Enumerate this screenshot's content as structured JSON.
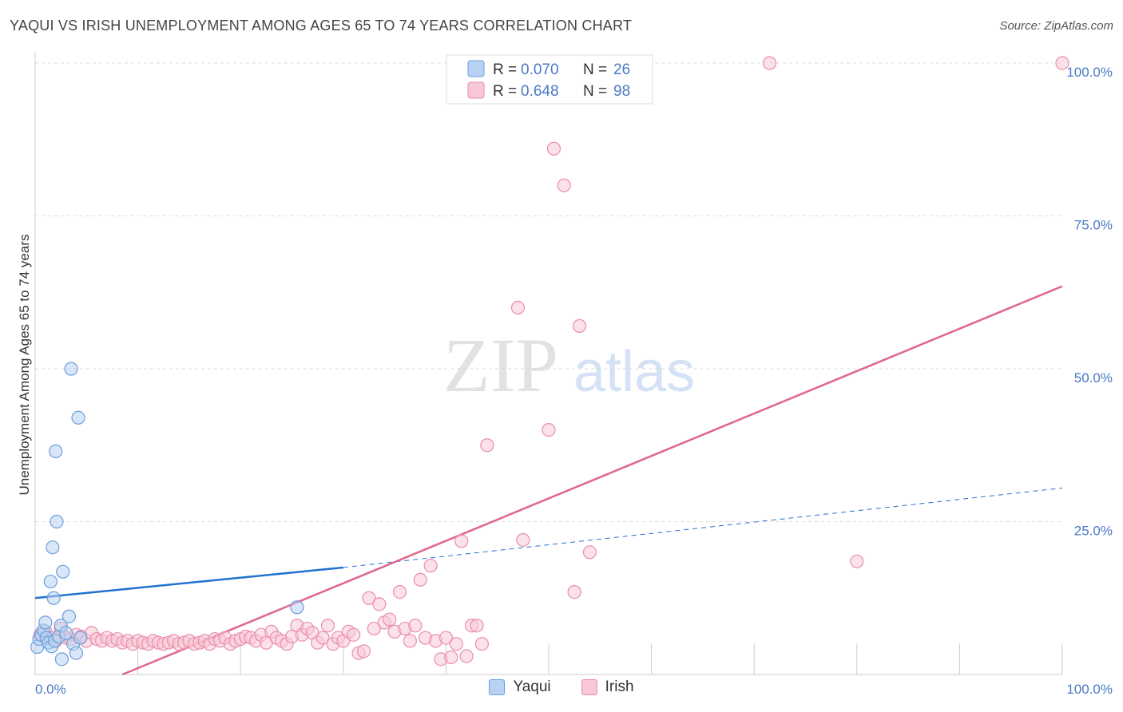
{
  "title": "YAQUI VS IRISH UNEMPLOYMENT AMONG AGES 65 TO 74 YEARS CORRELATION CHART",
  "source": "Source: ZipAtlas.com",
  "watermark": {
    "zip": "ZIP",
    "atlas": "atlas"
  },
  "colors": {
    "yaqui_fill": "#b8d2f3",
    "yaqui_stroke": "#6d9edb",
    "yaqui_line": "#2271d1",
    "irish_fill": "#f8c8d6",
    "irish_stroke": "#ea8eab",
    "irish_line": "#e0668e",
    "tick_label": "#4a79c4",
    "grid": "#dddddd"
  },
  "chart_data": {
    "type": "scatter",
    "title": "YAQUI VS IRISH UNEMPLOYMENT AMONG AGES 65 TO 74 YEARS CORRELATION CHART",
    "xlabel": "",
    "ylabel": "Unemployment Among Ages 65 to 74 years",
    "xlim": [
      0,
      100
    ],
    "ylim": [
      0,
      100
    ],
    "x_tick_labels": [
      "0.0%",
      "100.0%"
    ],
    "y_ticks": [
      25,
      50,
      75,
      100
    ],
    "y_tick_labels": [
      "25.0%",
      "50.0%",
      "75.0%",
      "100.0%"
    ],
    "grid": true,
    "legend_stats": [
      {
        "series": "Yaqui",
        "r_label": "R =",
        "r": "0.070",
        "n_label": "N =",
        "n": "26"
      },
      {
        "series": "Irish",
        "r_label": "R =",
        "r": "0.648",
        "n_label": "N =",
        "n": "98"
      }
    ],
    "series": [
      {
        "name": "Yaqui",
        "trend": {
          "x0": 0,
          "y0": 12.5,
          "x1": 30,
          "y1": 17.5,
          "dashed_to": {
            "x": 100,
            "y": 30.5
          }
        },
        "points": [
          [
            0.2,
            4.5
          ],
          [
            0.4,
            5.8
          ],
          [
            0.6,
            6.5
          ],
          [
            0.8,
            7.2
          ],
          [
            1.0,
            8.5
          ],
          [
            1.1,
            6.0
          ],
          [
            1.3,
            5.2
          ],
          [
            1.5,
            15.2
          ],
          [
            1.6,
            4.6
          ],
          [
            1.7,
            20.8
          ],
          [
            1.8,
            12.5
          ],
          [
            1.9,
            5.5
          ],
          [
            2.0,
            36.5
          ],
          [
            2.1,
            25.0
          ],
          [
            2.3,
            6.2
          ],
          [
            2.5,
            8.0
          ],
          [
            2.6,
            2.5
          ],
          [
            2.7,
            16.8
          ],
          [
            3.0,
            6.8
          ],
          [
            3.3,
            9.5
          ],
          [
            3.5,
            50.0
          ],
          [
            3.7,
            5.0
          ],
          [
            4.0,
            3.5
          ],
          [
            4.2,
            42.0
          ],
          [
            4.4,
            6.0
          ],
          [
            25.5,
            11.0
          ]
        ]
      },
      {
        "name": "Irish",
        "trend": {
          "x0": 8.5,
          "y0": 0,
          "x1": 100,
          "y1": 63.5
        },
        "points": [
          [
            0.5,
            6.5
          ],
          [
            1.0,
            7.0
          ],
          [
            1.5,
            6.0
          ],
          [
            2.0,
            5.5
          ],
          [
            2.5,
            7.5
          ],
          [
            3.0,
            6.0
          ],
          [
            3.5,
            5.8
          ],
          [
            4.0,
            6.5
          ],
          [
            4.5,
            6.2
          ],
          [
            5.0,
            5.5
          ],
          [
            5.5,
            6.8
          ],
          [
            6.0,
            5.8
          ],
          [
            6.5,
            5.5
          ],
          [
            7.0,
            6.0
          ],
          [
            7.5,
            5.5
          ],
          [
            8.0,
            5.8
          ],
          [
            8.5,
            5.2
          ],
          [
            9.0,
            5.5
          ],
          [
            9.5,
            5.0
          ],
          [
            10.0,
            5.5
          ],
          [
            10.5,
            5.2
          ],
          [
            11.0,
            5.0
          ],
          [
            11.5,
            5.5
          ],
          [
            12.0,
            5.2
          ],
          [
            12.5,
            5.0
          ],
          [
            13.0,
            5.2
          ],
          [
            13.5,
            5.5
          ],
          [
            14.0,
            5.0
          ],
          [
            14.5,
            5.2
          ],
          [
            15.0,
            5.5
          ],
          [
            15.5,
            5.0
          ],
          [
            16.0,
            5.2
          ],
          [
            16.5,
            5.5
          ],
          [
            17.0,
            5.0
          ],
          [
            17.5,
            5.8
          ],
          [
            18.0,
            5.5
          ],
          [
            18.5,
            6.0
          ],
          [
            19.0,
            5.0
          ],
          [
            19.5,
            5.5
          ],
          [
            20.0,
            5.8
          ],
          [
            20.5,
            6.2
          ],
          [
            21.0,
            6.0
          ],
          [
            21.5,
            5.5
          ],
          [
            22.0,
            6.5
          ],
          [
            22.5,
            5.2
          ],
          [
            23.0,
            7.0
          ],
          [
            23.5,
            6.0
          ],
          [
            24.0,
            5.5
          ],
          [
            24.5,
            5.0
          ],
          [
            25.0,
            6.2
          ],
          [
            25.5,
            8.0
          ],
          [
            26.0,
            6.5
          ],
          [
            26.5,
            7.5
          ],
          [
            27.0,
            6.8
          ],
          [
            27.5,
            5.2
          ],
          [
            28.0,
            6.0
          ],
          [
            28.5,
            8.0
          ],
          [
            29.0,
            5.0
          ],
          [
            29.5,
            6.0
          ],
          [
            30.0,
            5.5
          ],
          [
            30.5,
            7.0
          ],
          [
            31.0,
            6.5
          ],
          [
            31.5,
            3.5
          ],
          [
            32.0,
            3.8
          ],
          [
            32.5,
            12.5
          ],
          [
            33.0,
            7.5
          ],
          [
            33.5,
            11.5
          ],
          [
            34.0,
            8.5
          ],
          [
            34.5,
            9.0
          ],
          [
            35.0,
            7.0
          ],
          [
            35.5,
            13.5
          ],
          [
            36.0,
            7.5
          ],
          [
            36.5,
            5.5
          ],
          [
            37.0,
            8.0
          ],
          [
            37.5,
            15.5
          ],
          [
            38.0,
            6.0
          ],
          [
            38.5,
            17.8
          ],
          [
            39.0,
            5.5
          ],
          [
            39.5,
            2.5
          ],
          [
            40.0,
            6.0
          ],
          [
            40.5,
            2.8
          ],
          [
            41.0,
            5.0
          ],
          [
            41.5,
            21.8
          ],
          [
            42.0,
            3.0
          ],
          [
            42.5,
            8.0
          ],
          [
            43.0,
            8.0
          ],
          [
            43.5,
            5.0
          ],
          [
            44.0,
            37.5
          ],
          [
            47.0,
            60.0
          ],
          [
            47.5,
            22.0
          ],
          [
            50.0,
            40.0
          ],
          [
            50.5,
            86.0
          ],
          [
            51.5,
            80.0
          ],
          [
            52.5,
            13.5
          ],
          [
            53.0,
            57.0
          ],
          [
            54.0,
            20.0
          ],
          [
            71.5,
            100.0
          ],
          [
            80.0,
            18.5
          ],
          [
            100.0,
            100.0
          ]
        ]
      }
    ]
  }
}
